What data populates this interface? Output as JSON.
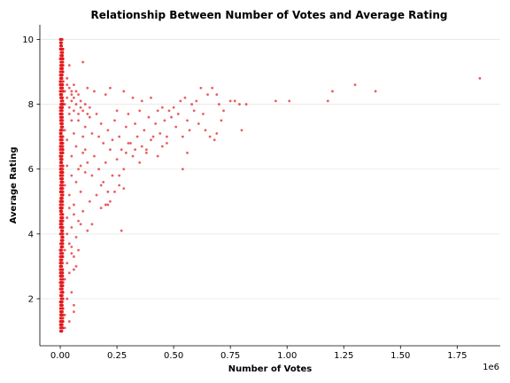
{
  "chart_data": {
    "type": "scatter",
    "title": "Relationship Between Number of Votes and Average Rating",
    "xlabel": "Number of Votes",
    "ylabel": "Average Rating",
    "x_offset_label": "1e6",
    "xlim": [
      -0.09,
      1.94
    ],
    "ylim": [
      0.55,
      10.45
    ],
    "x_ticks": [
      0.0,
      0.25,
      0.5,
      0.75,
      1.0,
      1.25,
      1.5,
      1.75
    ],
    "x_tick_labels": [
      "0.00",
      "0.25",
      "0.50",
      "0.75",
      "1.00",
      "1.25",
      "1.50",
      "1.75"
    ],
    "y_ticks": [
      2,
      4,
      6,
      8,
      10
    ],
    "y_tick_labels": [
      "2",
      "4",
      "6",
      "8",
      "10"
    ],
    "grid": "horizontal",
    "point_color": "#e31a1c",
    "dense_band": {
      "x_range": [
        0.0,
        0.012
      ],
      "y_range": [
        1.0,
        10.0
      ],
      "y_step": 0.1
    },
    "points": [
      [
        0.04,
        9.2
      ],
      [
        0.06,
        8.6
      ],
      [
        0.1,
        9.3
      ],
      [
        0.03,
        8.8
      ],
      [
        0.05,
        8.4
      ],
      [
        0.08,
        8.3
      ],
      [
        0.12,
        8.5
      ],
      [
        0.15,
        8.4
      ],
      [
        0.2,
        8.3
      ],
      [
        0.22,
        8.5
      ],
      [
        0.28,
        8.4
      ],
      [
        0.32,
        8.2
      ],
      [
        0.36,
        8.1
      ],
      [
        0.4,
        8.2
      ],
      [
        0.45,
        7.9
      ],
      [
        0.48,
        7.8
      ],
      [
        0.5,
        7.9
      ],
      [
        0.53,
        8.1
      ],
      [
        0.55,
        8.2
      ],
      [
        0.58,
        8.0
      ],
      [
        0.6,
        8.1
      ],
      [
        0.62,
        8.5
      ],
      [
        0.65,
        8.3
      ],
      [
        0.67,
        8.5
      ],
      [
        0.69,
        8.3
      ],
      [
        0.7,
        8.0
      ],
      [
        0.72,
        7.8
      ],
      [
        0.75,
        8.1
      ],
      [
        0.77,
        8.1
      ],
      [
        0.79,
        8.0
      ],
      [
        0.82,
        8.0
      ],
      [
        0.95,
        8.1
      ],
      [
        1.01,
        8.1
      ],
      [
        1.18,
        8.1
      ],
      [
        1.2,
        8.4
      ],
      [
        1.3,
        8.6
      ],
      [
        1.39,
        8.4
      ],
      [
        1.85,
        8.8
      ],
      [
        0.05,
        7.5
      ],
      [
        0.09,
        7.9
      ],
      [
        0.11,
        7.3
      ],
      [
        0.13,
        7.6
      ],
      [
        0.14,
        7.1
      ],
      [
        0.16,
        7.7
      ],
      [
        0.17,
        7.0
      ],
      [
        0.18,
        7.4
      ],
      [
        0.19,
        6.8
      ],
      [
        0.21,
        7.2
      ],
      [
        0.23,
        6.9
      ],
      [
        0.24,
        7.5
      ],
      [
        0.25,
        7.8
      ],
      [
        0.26,
        7.0
      ],
      [
        0.27,
        6.6
      ],
      [
        0.29,
        7.3
      ],
      [
        0.3,
        7.7
      ],
      [
        0.31,
        6.8
      ],
      [
        0.33,
        7.4
      ],
      [
        0.34,
        7.0
      ],
      [
        0.35,
        7.8
      ],
      [
        0.37,
        7.2
      ],
      [
        0.38,
        6.6
      ],
      [
        0.39,
        7.6
      ],
      [
        0.41,
        7.0
      ],
      [
        0.42,
        7.4
      ],
      [
        0.43,
        7.8
      ],
      [
        0.44,
        7.1
      ],
      [
        0.46,
        7.5
      ],
      [
        0.47,
        7.0
      ],
      [
        0.49,
        7.6
      ],
      [
        0.51,
        7.3
      ],
      [
        0.52,
        7.7
      ],
      [
        0.54,
        7.0
      ],
      [
        0.56,
        7.5
      ],
      [
        0.57,
        7.2
      ],
      [
        0.59,
        7.8
      ],
      [
        0.61,
        7.4
      ],
      [
        0.63,
        7.7
      ],
      [
        0.64,
        7.2
      ],
      [
        0.66,
        7.0
      ],
      [
        0.68,
        6.9
      ],
      [
        0.69,
        7.1
      ],
      [
        0.71,
        7.5
      ],
      [
        0.8,
        7.2
      ],
      [
        0.56,
        6.5
      ],
      [
        0.54,
        6.0
      ],
      [
        0.1,
        6.5
      ],
      [
        0.12,
        6.2
      ],
      [
        0.14,
        5.8
      ],
      [
        0.15,
        6.4
      ],
      [
        0.17,
        6.0
      ],
      [
        0.18,
        5.5
      ],
      [
        0.2,
        6.2
      ],
      [
        0.21,
        5.3
      ],
      [
        0.22,
        6.6
      ],
      [
        0.23,
        5.8
      ],
      [
        0.25,
        6.3
      ],
      [
        0.26,
        5.5
      ],
      [
        0.28,
        6.0
      ],
      [
        0.29,
        6.5
      ],
      [
        0.3,
        6.8
      ],
      [
        0.32,
        6.4
      ],
      [
        0.33,
        6.6
      ],
      [
        0.35,
        6.2
      ],
      [
        0.36,
        6.7
      ],
      [
        0.38,
        6.5
      ],
      [
        0.4,
        6.9
      ],
      [
        0.43,
        6.4
      ],
      [
        0.45,
        6.7
      ],
      [
        0.47,
        6.8
      ],
      [
        0.13,
        5.0
      ],
      [
        0.16,
        5.2
      ],
      [
        0.19,
        5.6
      ],
      [
        0.21,
        4.9
      ],
      [
        0.24,
        5.3
      ],
      [
        0.26,
        5.8
      ],
      [
        0.28,
        5.4
      ],
      [
        0.22,
        5.0
      ],
      [
        0.27,
        4.1
      ],
      [
        0.18,
        4.8
      ],
      [
        0.2,
        4.9
      ],
      [
        0.14,
        4.3
      ],
      [
        0.12,
        4.1
      ],
      [
        0.02,
        7.2
      ],
      [
        0.03,
        6.9
      ],
      [
        0.04,
        7.7
      ],
      [
        0.05,
        6.4
      ],
      [
        0.06,
        7.1
      ],
      [
        0.07,
        6.7
      ],
      [
        0.08,
        7.5
      ],
      [
        0.09,
        6.1
      ],
      [
        0.1,
        7.0
      ],
      [
        0.11,
        6.6
      ],
      [
        0.02,
        5.5
      ],
      [
        0.03,
        6.1
      ],
      [
        0.04,
        5.2
      ],
      [
        0.05,
        5.8
      ],
      [
        0.06,
        4.9
      ],
      [
        0.07,
        5.6
      ],
      [
        0.08,
        6.0
      ],
      [
        0.09,
        5.3
      ],
      [
        0.1,
        4.7
      ],
      [
        0.11,
        5.9
      ],
      [
        0.03,
        4.5
      ],
      [
        0.04,
        4.8
      ],
      [
        0.05,
        4.2
      ],
      [
        0.06,
        4.6
      ],
      [
        0.07,
        3.9
      ],
      [
        0.08,
        4.4
      ],
      [
        0.09,
        4.3
      ],
      [
        0.04,
        3.7
      ],
      [
        0.05,
        3.4
      ],
      [
        0.06,
        3.3
      ],
      [
        0.03,
        3.1
      ],
      [
        0.04,
        2.8
      ],
      [
        0.05,
        2.2
      ],
      [
        0.06,
        1.8
      ],
      [
        0.06,
        1.6
      ],
      [
        0.04,
        1.3
      ],
      [
        0.03,
        2.0
      ],
      [
        0.02,
        2.6
      ],
      [
        0.02,
        3.5
      ],
      [
        0.03,
        4.0
      ],
      [
        0.02,
        1.5
      ],
      [
        0.02,
        1.1
      ],
      [
        0.08,
        3.5
      ],
      [
        0.07,
        3.0
      ],
      [
        0.05,
        3.6
      ],
      [
        0.06,
        2.9
      ],
      [
        0.02,
        8.0
      ],
      [
        0.03,
        8.2
      ],
      [
        0.04,
        7.9
      ],
      [
        0.05,
        8.1
      ],
      [
        0.06,
        7.8
      ],
      [
        0.07,
        8.0
      ],
      [
        0.08,
        7.7
      ],
      [
        0.09,
        8.1
      ],
      [
        0.1,
        7.8
      ],
      [
        0.11,
        8.0
      ],
      [
        0.12,
        7.7
      ],
      [
        0.13,
        7.9
      ],
      [
        0.02,
        8.4
      ],
      [
        0.03,
        8.6
      ],
      [
        0.04,
        8.5
      ],
      [
        0.05,
        8.3
      ],
      [
        0.06,
        8.2
      ],
      [
        0.07,
        8.4
      ]
    ]
  }
}
